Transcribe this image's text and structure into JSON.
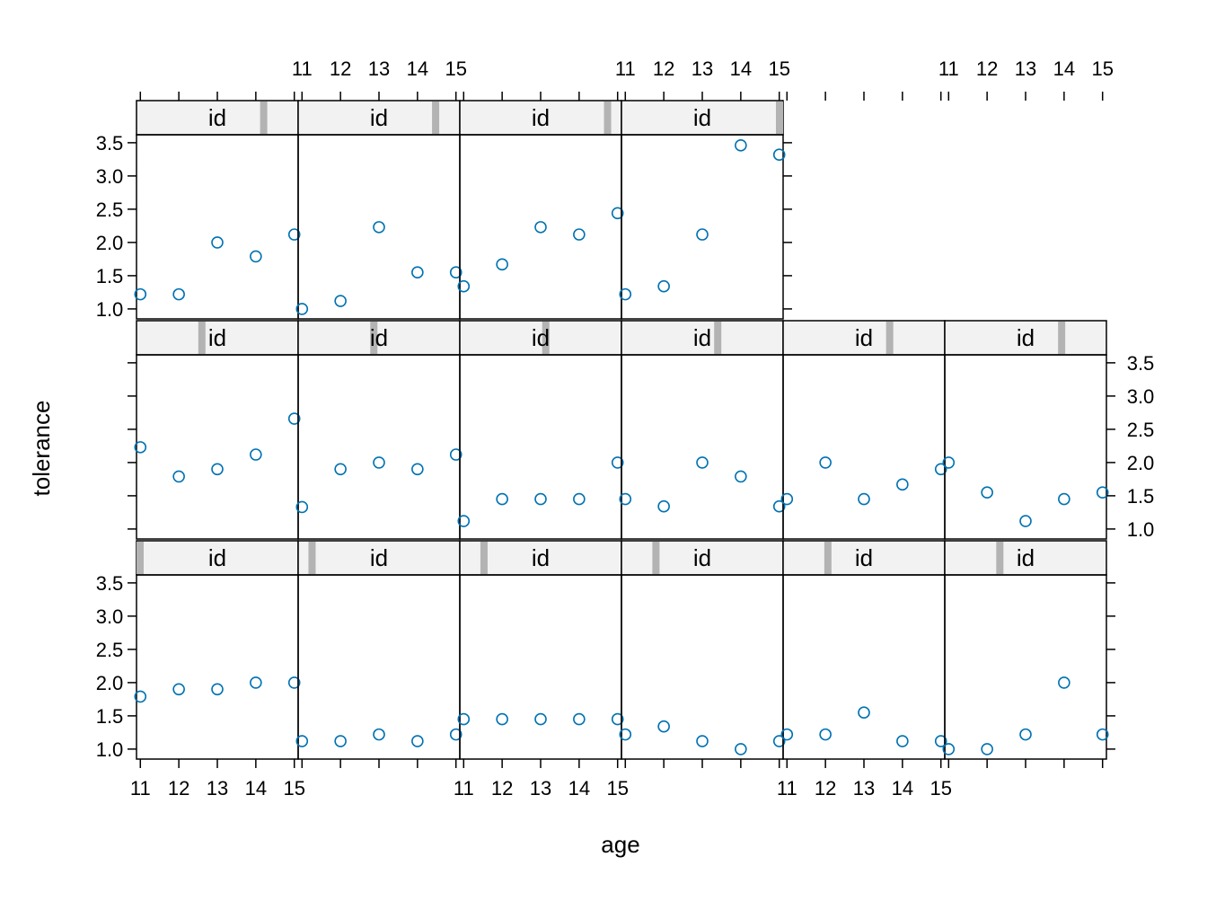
{
  "chart_data": {
    "type": "scatter",
    "layout": {
      "columns": 6,
      "rows": 3
    },
    "xlabel": "age",
    "ylabel": "tolerance",
    "strip_label": "id",
    "x_ticks": [
      "11",
      "12",
      "13",
      "14",
      "15"
    ],
    "y_ticks": [
      "1.0",
      "1.5",
      "2.0",
      "2.5",
      "3.0",
      "3.5"
    ],
    "xlim": [
      10.9,
      15.1
    ],
    "ylim": [
      0.85,
      3.62
    ],
    "x": [
      11,
      12,
      13,
      14,
      15
    ],
    "point_color": "#0072B2",
    "strip_fill": "#f2f2f2",
    "strip_indicator_color": "#b3b3b3",
    "panels": [
      {
        "level": 1,
        "values": [
          1.79,
          1.9,
          1.9,
          2.0,
          2.0
        ]
      },
      {
        "level": 2,
        "values": [
          1.12,
          1.12,
          1.22,
          1.12,
          1.22
        ]
      },
      {
        "level": 3,
        "values": [
          1.45,
          1.45,
          1.45,
          1.45,
          1.45
        ]
      },
      {
        "level": 4,
        "values": [
          1.22,
          1.34,
          1.12,
          1.0,
          1.12
        ]
      },
      {
        "level": 5,
        "values": [
          1.22,
          1.22,
          1.55,
          1.12,
          1.12
        ]
      },
      {
        "level": 6,
        "values": [
          1.0,
          1.0,
          1.22,
          2.0,
          1.22
        ]
      },
      {
        "level": 7,
        "values": [
          2.23,
          1.79,
          1.9,
          2.12,
          2.66
        ]
      },
      {
        "level": 8,
        "values": [
          1.33,
          1.9,
          2.0,
          1.9,
          2.12
        ]
      },
      {
        "level": 9,
        "values": [
          1.12,
          1.45,
          1.45,
          1.45,
          2.0
        ]
      },
      {
        "level": 10,
        "values": [
          1.45,
          1.34,
          2.0,
          1.79,
          1.34
        ]
      },
      {
        "level": 11,
        "values": [
          1.45,
          2.0,
          1.45,
          1.67,
          1.9
        ]
      },
      {
        "level": 12,
        "values": [
          2.0,
          1.55,
          1.12,
          1.45,
          1.55
        ]
      },
      {
        "level": 13,
        "values": [
          1.22,
          1.22,
          2.0,
          1.79,
          2.12
        ]
      },
      {
        "level": 14,
        "values": [
          1.0,
          1.12,
          2.23,
          1.55,
          1.55
        ]
      },
      {
        "level": 15,
        "values": [
          1.34,
          1.67,
          2.23,
          2.12,
          2.44
        ]
      },
      {
        "level": 16,
        "values": [
          1.22,
          1.34,
          2.12,
          3.46,
          3.32
        ]
      }
    ]
  }
}
